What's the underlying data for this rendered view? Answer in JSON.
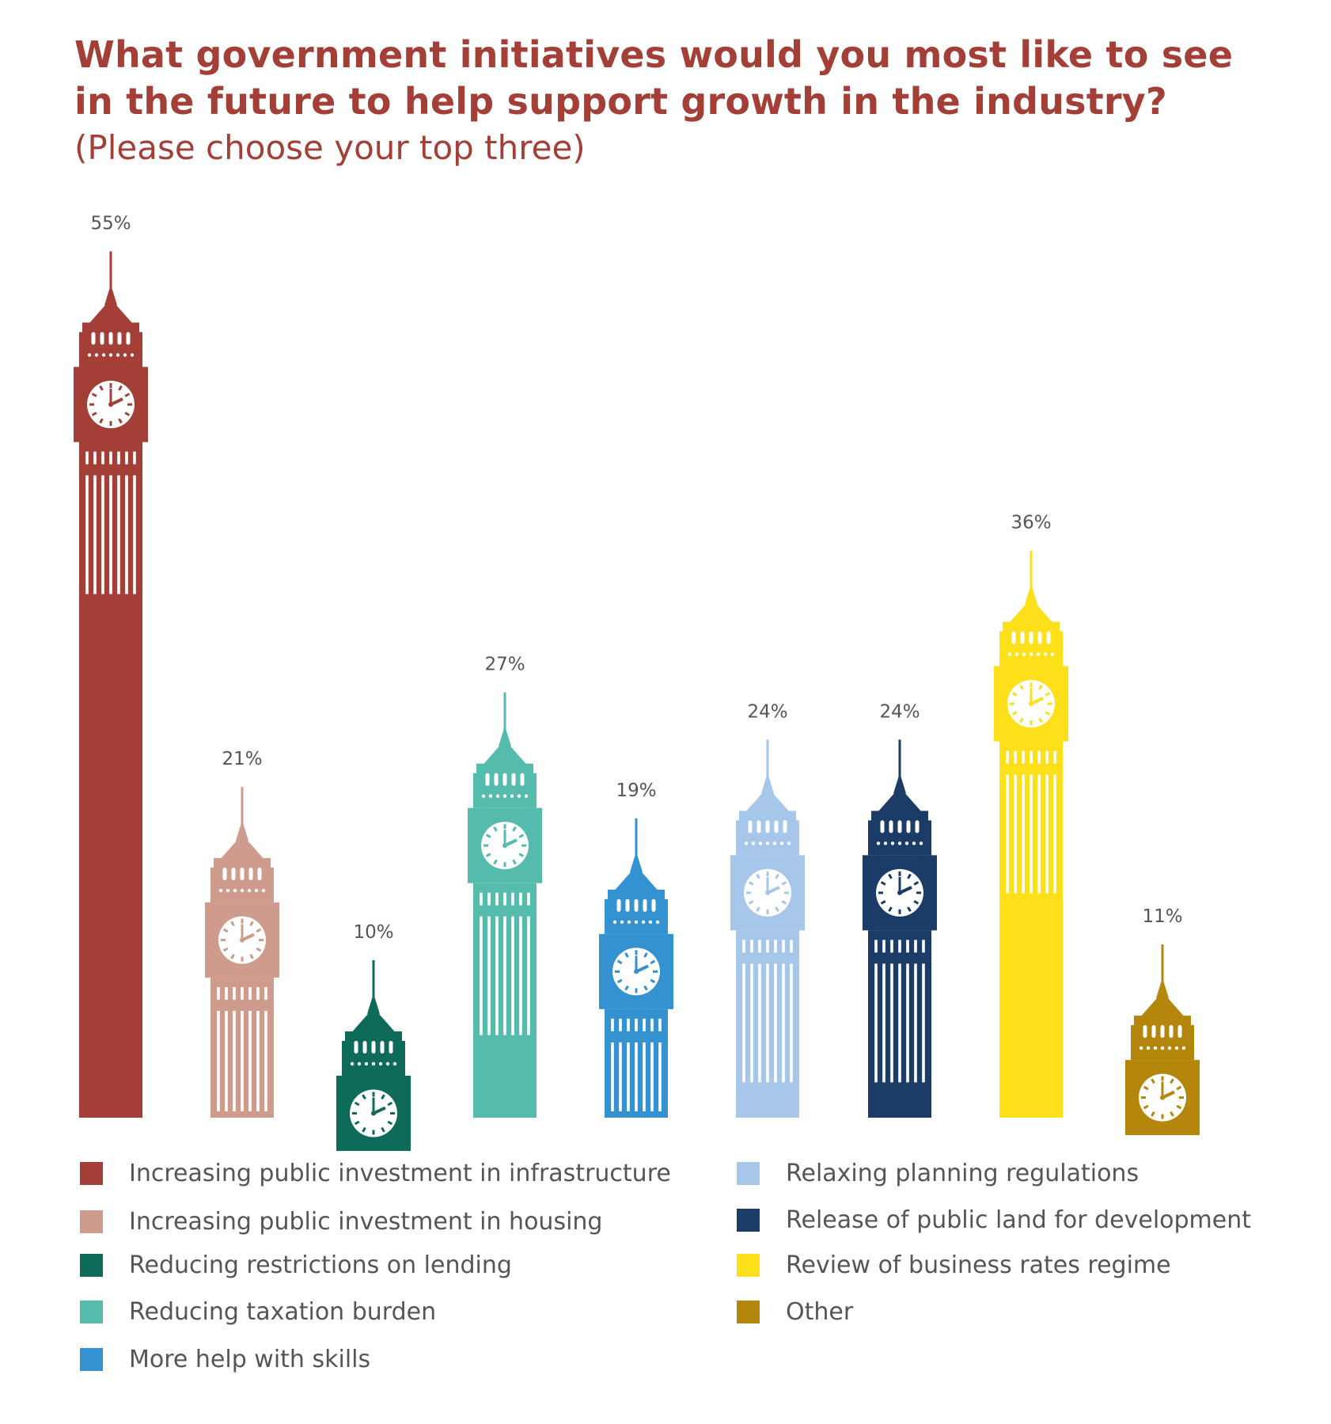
{
  "title": "What government initiatives would you most like to see in the future to help support growth in the industry?",
  "subtitle": "(Please choose your top three)",
  "chart_data": {
    "type": "bar",
    "categories": [
      "Increasing public investment in infrastructure",
      "Increasing public investment in housing",
      "Reducing restrictions on lending",
      "Reducing taxation burden",
      "More help with skills",
      "Relaxing planning regulations",
      "Release of public land for development",
      "Review of business rates regime",
      "Other"
    ],
    "values": [
      55,
      21,
      10,
      27,
      19,
      24,
      24,
      36,
      11
    ],
    "value_labels": [
      "55%",
      "21%",
      "10%",
      "27%",
      "19%",
      "24%",
      "24%",
      "36%",
      "11%"
    ],
    "colors": [
      "#a33f36",
      "#cf9b8c",
      "#0e6b59",
      "#55bcad",
      "#3492d1",
      "#a7c7ea",
      "#1a3c66",
      "#fde01a",
      "#b4860b"
    ],
    "unit": "%",
    "mark_style": "clock-tower",
    "grid": false,
    "legend_position": "bottom"
  }
}
